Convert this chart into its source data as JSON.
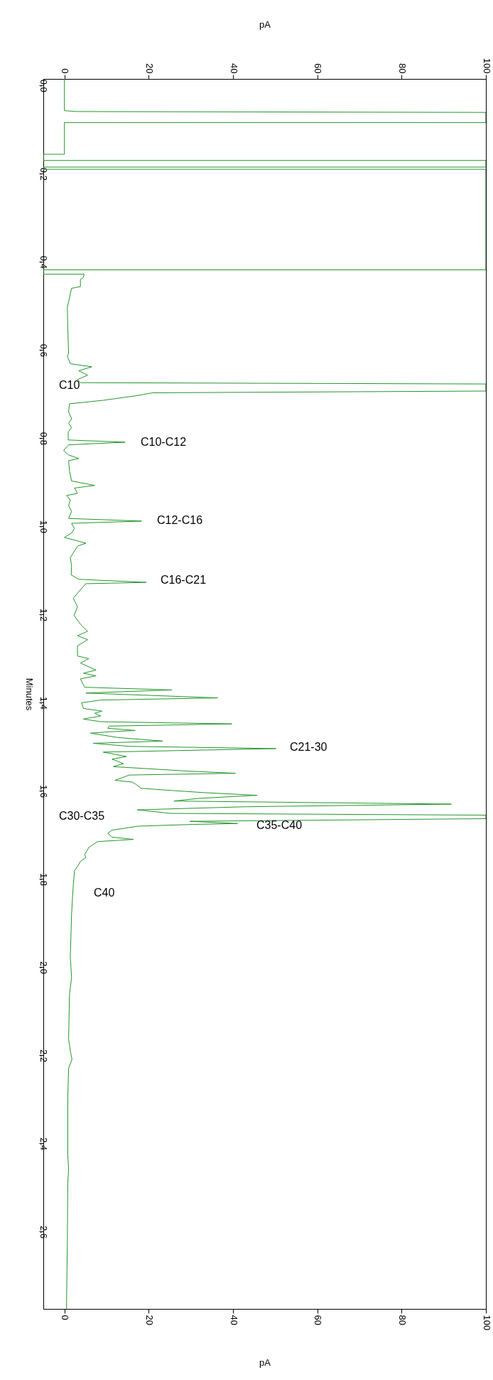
{
  "chart_data": {
    "type": "line",
    "orientation": "horizontal",
    "xlabel": "pA",
    "x2label": "pA",
    "ylabel": "Minutes",
    "xlim": [
      -5,
      100
    ],
    "xticks": [
      0,
      20,
      40,
      60,
      80,
      100
    ],
    "x2lim": [
      -5,
      100
    ],
    "x2ticks": [
      0,
      20,
      40,
      60,
      80,
      100
    ],
    "ylim": [
      2.775,
      -0.015
    ],
    "yticks": [
      {
        "value": 0,
        "label": "0.0"
      },
      0.2,
      0.4,
      0.6,
      0.8,
      {
        "value": 1,
        "label": "1.0"
      },
      1.2,
      1.4,
      1.6,
      1.8,
      {
        "value": 2,
        "label": "2.0"
      },
      2.2,
      2.4,
      2.6
    ],
    "grid": false,
    "marker": "none",
    "line_style": "solid",
    "annotations": [
      "C10",
      "C10-C12",
      "C12-C16",
      "C16-C21",
      "C21-30",
      "C30-C35",
      "C35-C40",
      "C40"
    ],
    "series": [
      {
        "color": "#22962b",
        "x": [
          -0.015,
          0.057,
          0.059,
          0.061,
          0.084,
          0.084,
          0.156,
          0.156,
          0.17,
          0.17,
          0.185,
          0.185,
          0.19,
          0.19,
          0.418,
          0.418,
          0.428,
          0.428,
          0.435,
          0.44,
          0.456,
          0.46,
          0.503,
          0.55,
          0.608,
          0.614,
          0.631,
          0.638,
          0.647,
          0.657,
          0.667,
          0.674,
          0.677,
          0.693,
          0.697,
          0.704,
          0.714,
          0.722,
          0.74,
          0.756,
          0.766,
          0.776,
          0.786,
          0.804,
          0.809,
          0.815,
          0.828,
          0.838,
          0.846,
          0.851,
          0.874,
          0.897,
          0.907,
          0.913,
          0.925,
          0.93,
          0.94,
          0.953,
          0.966,
          0.982,
          0.988,
          0.993,
          1.005,
          1.015,
          1.025,
          1.038,
          1.045,
          1.071,
          1.09,
          1.11,
          1.12,
          1.127,
          1.13,
          1.136,
          1.163,
          1.182,
          1.202,
          1.222,
          1.238,
          1.248,
          1.257,
          1.271,
          1.294,
          1.3,
          1.31,
          1.326,
          1.333,
          1.339,
          1.346,
          1.365,
          1.371,
          1.378,
          1.389,
          1.394,
          1.4,
          1.413,
          1.419,
          1.424,
          1.43,
          1.437,
          1.443,
          1.448,
          1.453,
          1.458,
          1.463,
          1.466,
          1.469,
          1.479,
          1.487,
          1.492,
          1.499,
          1.504,
          1.512,
          1.522,
          1.528,
          1.538,
          1.545,
          1.555,
          1.56,
          1.564,
          1.576,
          1.58,
          1.584,
          1.594,
          1.597,
          1.604,
          1.61,
          1.617,
          1.623,
          1.63,
          1.636,
          1.643,
          1.648,
          1.651,
          1.655,
          1.663,
          1.669,
          1.674,
          1.676,
          1.68,
          1.689,
          1.696,
          1.705,
          1.71,
          1.715,
          1.728,
          1.745,
          1.751,
          1.76,
          1.767,
          1.781,
          1.814,
          1.879,
          1.977,
          2.023,
          2.062,
          2.163,
          2.19,
          2.209,
          2.229,
          2.295,
          2.426,
          2.458,
          2.49,
          2.623,
          2.774
        ],
        "values": [
          0,
          0,
          3,
          100,
          100,
          0,
          0,
          -5,
          -5,
          100,
          100,
          -5,
          -5,
          100,
          100,
          -5,
          -5,
          4.7,
          4.5,
          3.8,
          3.8,
          1.7,
          0.7,
          0.8,
          1.0,
          0.7,
          1.4,
          6.5,
          3.4,
          5.5,
          3.1,
          3.8,
          100,
          100,
          20.9,
          16.8,
          9.2,
          1.2,
          1.0,
          1.7,
          1.0,
          1.7,
          0.9,
          0.9,
          14.4,
          1.0,
          -0.2,
          1.0,
          3.4,
          1.0,
          1.2,
          1.7,
          7.2,
          2.4,
          3.1,
          0.5,
          1.4,
          1.0,
          1.7,
          1.0,
          18.3,
          1.7,
          2.4,
          1.7,
          0,
          5.1,
          3.1,
          1.4,
          1.7,
          1.6,
          3.4,
          19.4,
          5.1,
          4.5,
          2.1,
          3.1,
          2.3,
          3.8,
          5.5,
          3.1,
          5.5,
          3.1,
          3.1,
          5.8,
          3.8,
          7.5,
          4.5,
          7.5,
          3.8,
          4.8,
          25.5,
          5.1,
          36.4,
          8.6,
          4.1,
          4.5,
          8.9,
          7.2,
          8.6,
          4.5,
          8.6,
          39.7,
          10.6,
          10.3,
          16.8,
          10.6,
          6.2,
          12.7,
          23.3,
          6.8,
          15.4,
          50.2,
          9.2,
          14.7,
          11.3,
          14.0,
          11.6,
          29.1,
          40.6,
          15.4,
          12.0,
          16.1,
          16.8,
          18.2,
          22.3,
          33.2,
          45.7,
          31.8,
          26.0,
          91.8,
          42.8,
          17.3,
          22.3,
          25.0,
          100,
          100,
          29.8,
          41.1,
          30.5,
          17.5,
          11.3,
          10.3,
          11.3,
          16.4,
          7.9,
          5.8,
          4.8,
          5.1,
          3.8,
          3.4,
          2.4,
          2.1,
          1.7,
          1.4,
          1.7,
          1.2,
          1.0,
          1.4,
          1.8,
          1.0,
          0.8,
          0.8,
          1.0,
          0.8,
          0.7,
          0.5
        ]
      }
    ]
  }
}
